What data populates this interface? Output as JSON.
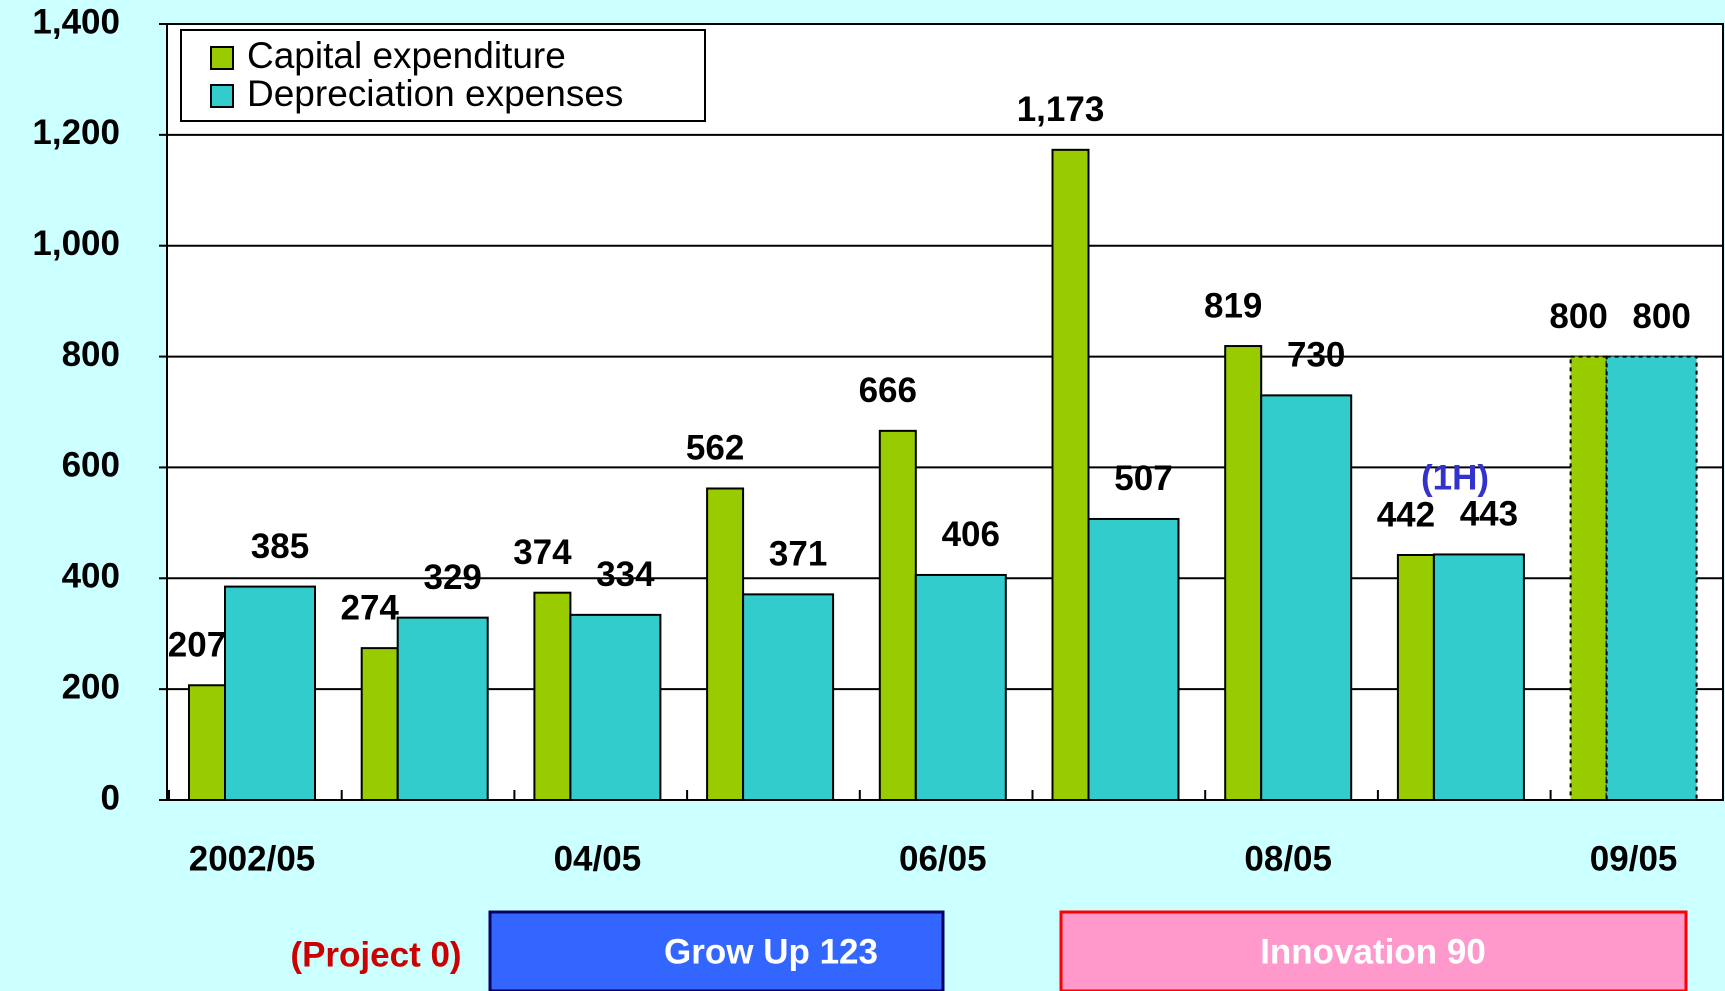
{
  "chart_data": {
    "type": "bar",
    "categories": [
      "2002/05",
      null,
      "04/05",
      null,
      "06/05",
      null,
      "08/05",
      null,
      "09/05"
    ],
    "series": [
      {
        "name": "Capital expenditure",
        "color": "#99cc00",
        "values": [
          207,
          274,
          374,
          562,
          666,
          1173,
          819,
          442,
          800
        ],
        "value_labels": [
          "207",
          "274",
          "374",
          "562",
          "666",
          "1,173",
          "819",
          "442",
          "800"
        ]
      },
      {
        "name": "Depreciation expenses",
        "color": "#33cccc",
        "values": [
          385,
          329,
          334,
          371,
          406,
          507,
          730,
          443,
          800
        ]
      }
    ],
    "ylim": [
      0,
      1400
    ],
    "yticks": [
      0,
      200,
      400,
      600,
      800,
      {
        "value": 1000,
        "label": "1,000"
      },
      {
        "value": 1200,
        "label": "1,200"
      },
      {
        "value": 1400,
        "label": "1,400"
      }
    ],
    "grid": true,
    "legend": "upper left",
    "annotations": [
      "(1H)",
      "(Project 0)",
      "Grow Up 123",
      "Innovation 90"
    ]
  }
}
